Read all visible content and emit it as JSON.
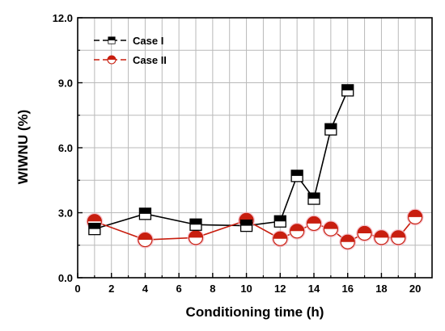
{
  "chart_data": {
    "type": "line",
    "xlabel": "Conditioning time (h)",
    "ylabel": "WIWNU (%)",
    "xlim": [
      0,
      21
    ],
    "ylim": [
      0,
      12
    ],
    "x_ticks": [
      0,
      2,
      4,
      6,
      8,
      10,
      12,
      14,
      16,
      18,
      20
    ],
    "x_tick_labels": [
      "0",
      "2",
      "4",
      "6",
      "8",
      "10",
      "12",
      "14",
      "16",
      "18",
      "20"
    ],
    "y_ticks": [
      0,
      3,
      6,
      9,
      12
    ],
    "y_tick_labels": [
      "0.0",
      "3.0",
      "6.0",
      "9.0",
      "12.0"
    ],
    "grid": true,
    "legend_position": "top-left",
    "series": [
      {
        "name": "Case I",
        "color": "#000000",
        "marker": "half-filled-square",
        "x": [
          1,
          4,
          7,
          10,
          12,
          13,
          14,
          15,
          16
        ],
        "y": [
          2.25,
          2.95,
          2.45,
          2.4,
          2.6,
          4.7,
          3.65,
          6.85,
          8.65
        ]
      },
      {
        "name": "Case II",
        "color": "#c81e0f",
        "marker": "half-filled-circle",
        "x": [
          1,
          4,
          7,
          10,
          12,
          13,
          14,
          15,
          16,
          17,
          18,
          19,
          20
        ],
        "y": [
          2.6,
          1.75,
          1.85,
          2.65,
          1.8,
          2.15,
          2.5,
          2.25,
          1.65,
          2.05,
          1.85,
          1.85,
          2.8
        ]
      }
    ]
  }
}
